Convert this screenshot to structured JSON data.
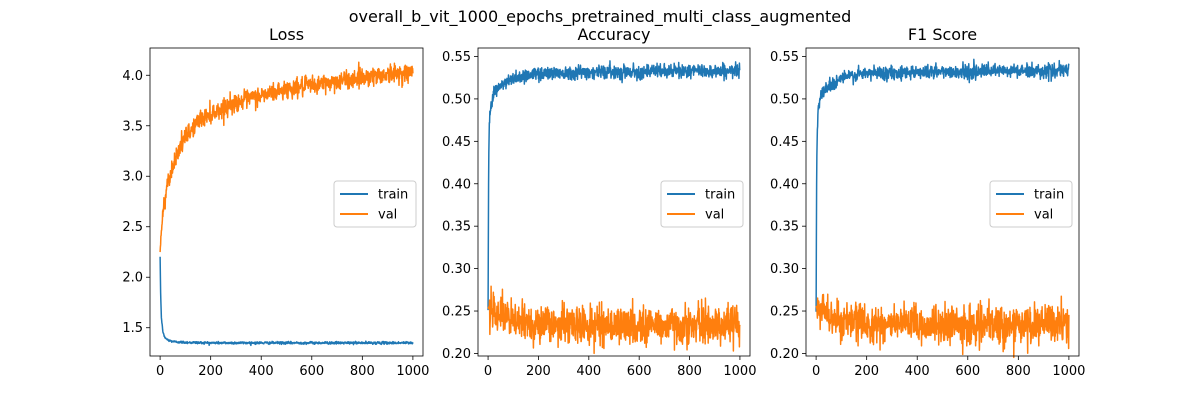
{
  "figure": {
    "suptitle": "overall_b_vit_1000_epochs_pretrained_multi_class_augmented"
  },
  "colors": {
    "train": "#1f77b4",
    "val": "#ff7f0e",
    "legend_border": "#cccccc"
  },
  "chart_data": [
    {
      "type": "line",
      "title": "Loss",
      "xlabel": "",
      "ylabel": "",
      "xlim": [
        -40,
        1040
      ],
      "ylim": [
        1.22,
        4.27
      ],
      "xticks": [
        0,
        200,
        400,
        600,
        800,
        1000
      ],
      "yticks": [
        1.5,
        2.0,
        2.5,
        3.0,
        3.5,
        4.0
      ],
      "ytick_labels": [
        "1.5",
        "2.0",
        "2.5",
        "3.0",
        "3.5",
        "4.0"
      ],
      "grid": false,
      "legend_position": "center right",
      "series": [
        {
          "name": "train",
          "color": "#1f77b4",
          "x": [
            0,
            2,
            5,
            10,
            15,
            20,
            30,
            40,
            60,
            100,
            200,
            400,
            600,
            800,
            1000
          ],
          "y": [
            2.2,
            1.85,
            1.6,
            1.48,
            1.42,
            1.4,
            1.38,
            1.37,
            1.36,
            1.355,
            1.35,
            1.35,
            1.35,
            1.35,
            1.35
          ],
          "noise": 0.006
        },
        {
          "name": "val",
          "color": "#ff7f0e",
          "x": [
            0,
            5,
            10,
            20,
            30,
            50,
            70,
            100,
            150,
            200,
            300,
            400,
            500,
            600,
            700,
            800,
            900,
            1000
          ],
          "y": [
            2.25,
            2.45,
            2.6,
            2.8,
            2.95,
            3.1,
            3.25,
            3.38,
            3.55,
            3.62,
            3.73,
            3.8,
            3.86,
            3.9,
            3.94,
            3.98,
            4.01,
            4.03
          ],
          "noise": 0.045
        }
      ]
    },
    {
      "type": "line",
      "title": "Accuracy",
      "xlabel": "",
      "ylabel": "",
      "xlim": [
        -40,
        1040
      ],
      "ylim": [
        0.197,
        0.56
      ],
      "xticks": [
        0,
        200,
        400,
        600,
        800,
        1000
      ],
      "yticks": [
        0.2,
        0.25,
        0.3,
        0.35,
        0.4,
        0.45,
        0.5,
        0.55
      ],
      "ytick_labels": [
        "0.20",
        "0.25",
        "0.30",
        "0.35",
        "0.40",
        "0.45",
        "0.50",
        "0.55"
      ],
      "grid": false,
      "legend_position": "center right",
      "series": [
        {
          "name": "train",
          "color": "#1f77b4",
          "x": [
            0,
            1,
            2,
            3,
            5,
            8,
            12,
            20,
            30,
            50,
            80,
            100,
            200,
            400,
            600,
            800,
            1000
          ],
          "y": [
            0.25,
            0.33,
            0.4,
            0.44,
            0.47,
            0.485,
            0.495,
            0.505,
            0.51,
            0.515,
            0.52,
            0.525,
            0.53,
            0.532,
            0.532,
            0.533,
            0.533
          ],
          "noise": 0.004
        },
        {
          "name": "val",
          "color": "#ff7f0e",
          "x": [
            0,
            20,
            50,
            100,
            200,
            400,
            600,
            800,
            1000
          ],
          "y": [
            0.255,
            0.255,
            0.245,
            0.238,
            0.235,
            0.233,
            0.233,
            0.233,
            0.235
          ],
          "noise": 0.011
        }
      ]
    },
    {
      "type": "line",
      "title": "F1 Score",
      "xlabel": "",
      "ylabel": "",
      "xlim": [
        -40,
        1040
      ],
      "ylim": [
        0.197,
        0.56
      ],
      "xticks": [
        0,
        200,
        400,
        600,
        800,
        1000
      ],
      "yticks": [
        0.2,
        0.25,
        0.3,
        0.35,
        0.4,
        0.45,
        0.5,
        0.55
      ],
      "ytick_labels": [
        "0.20",
        "0.25",
        "0.30",
        "0.35",
        "0.40",
        "0.45",
        "0.50",
        "0.55"
      ],
      "grid": false,
      "legend_position": "center right",
      "series": [
        {
          "name": "train",
          "color": "#1f77b4",
          "x": [
            0,
            1,
            2,
            3,
            5,
            8,
            12,
            20,
            30,
            50,
            80,
            100,
            200,
            400,
            600,
            800,
            1000
          ],
          "y": [
            0.25,
            0.33,
            0.4,
            0.44,
            0.47,
            0.485,
            0.495,
            0.505,
            0.51,
            0.515,
            0.52,
            0.525,
            0.53,
            0.532,
            0.532,
            0.533,
            0.533
          ],
          "noise": 0.004
        },
        {
          "name": "val",
          "color": "#ff7f0e",
          "x": [
            0,
            20,
            50,
            100,
            200,
            400,
            600,
            800,
            1000
          ],
          "y": [
            0.255,
            0.255,
            0.245,
            0.238,
            0.235,
            0.233,
            0.233,
            0.233,
            0.235
          ],
          "noise": 0.011
        }
      ]
    }
  ]
}
